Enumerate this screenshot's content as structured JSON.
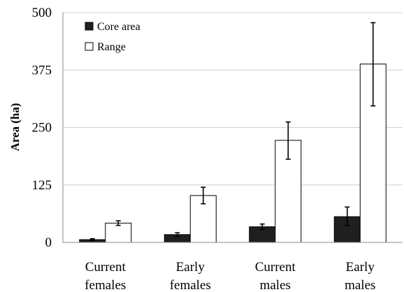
{
  "chart_data": {
    "type": "bar",
    "ylabel": "Area (ha)",
    "ylim": [
      0,
      500
    ],
    "yticks": [
      "0",
      "125",
      "250",
      "375",
      "500"
    ],
    "grid": true,
    "legend_position": "top-left",
    "categories": [
      [
        "Current",
        "females"
      ],
      [
        "Early",
        "females"
      ],
      [
        "Current",
        "males"
      ],
      [
        "Early",
        "males"
      ]
    ],
    "series": [
      {
        "name": "Core area",
        "color": "#1f1f1f",
        "values": [
          6,
          17,
          34,
          56
        ],
        "error_low": [
          4,
          13,
          28,
          37
        ],
        "error_high": [
          8,
          21,
          40,
          77
        ]
      },
      {
        "name": "Range",
        "color": "#ffffff",
        "values": [
          42,
          102,
          222,
          388
        ],
        "error_low": [
          37,
          84,
          181,
          297
        ],
        "error_high": [
          47,
          120,
          262,
          478
        ]
      }
    ]
  }
}
